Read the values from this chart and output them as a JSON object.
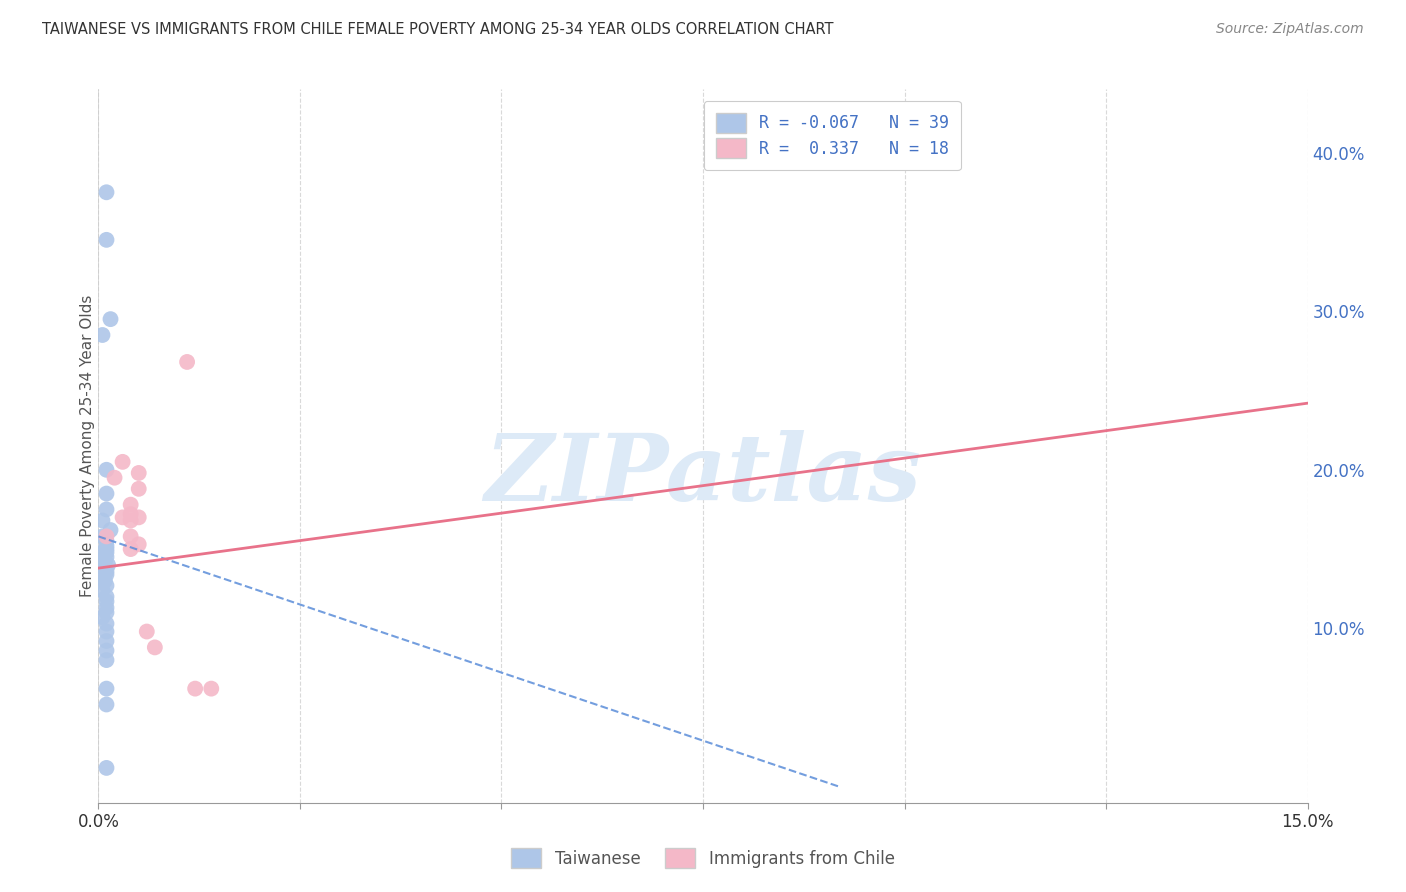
{
  "title": "TAIWANESE VS IMMIGRANTS FROM CHILE FEMALE POVERTY AMONG 25-34 YEAR OLDS CORRELATION CHART",
  "source": "Source: ZipAtlas.com",
  "ylabel": "Female Poverty Among 25-34 Year Olds",
  "xlim": [
    0,
    0.15
  ],
  "ylim": [
    -0.01,
    0.44
  ],
  "xticks": [
    0.0,
    0.025,
    0.05,
    0.075,
    0.1,
    0.125,
    0.15
  ],
  "yticks_right": [
    0.0,
    0.1,
    0.2,
    0.3,
    0.4
  ],
  "ytick_right_labels": [
    "",
    "10.0%",
    "20.0%",
    "30.0%",
    "40.0%"
  ],
  "r_taiwanese": -0.067,
  "n_taiwanese": 39,
  "r_chile": 0.337,
  "n_chile": 18,
  "legend_label1": "Taiwanese",
  "legend_label2": "Immigrants from Chile",
  "blue_color": "#aec6e8",
  "pink_color": "#f4b8c8",
  "blue_line_color": "#5b8dd9",
  "pink_line_color": "#e8728a",
  "blue_scatter": [
    [
      0.001,
      0.375
    ],
    [
      0.001,
      0.345
    ],
    [
      0.0015,
      0.295
    ],
    [
      0.0005,
      0.285
    ],
    [
      0.001,
      0.2
    ],
    [
      0.001,
      0.185
    ],
    [
      0.001,
      0.175
    ],
    [
      0.0005,
      0.168
    ],
    [
      0.0015,
      0.162
    ],
    [
      0.0005,
      0.158
    ],
    [
      0.001,
      0.155
    ],
    [
      0.001,
      0.152
    ],
    [
      0.001,
      0.15
    ],
    [
      0.0005,
      0.148
    ],
    [
      0.001,
      0.148
    ],
    [
      0.001,
      0.145
    ],
    [
      0.0005,
      0.143
    ],
    [
      0.0008,
      0.142
    ],
    [
      0.0012,
      0.14
    ],
    [
      0.0008,
      0.138
    ],
    [
      0.001,
      0.136
    ],
    [
      0.001,
      0.134
    ],
    [
      0.0005,
      0.133
    ],
    [
      0.0008,
      0.13
    ],
    [
      0.001,
      0.127
    ],
    [
      0.0005,
      0.124
    ],
    [
      0.001,
      0.12
    ],
    [
      0.001,
      0.117
    ],
    [
      0.001,
      0.113
    ],
    [
      0.001,
      0.11
    ],
    [
      0.0005,
      0.107
    ],
    [
      0.001,
      0.103
    ],
    [
      0.001,
      0.098
    ],
    [
      0.001,
      0.092
    ],
    [
      0.001,
      0.086
    ],
    [
      0.001,
      0.08
    ],
    [
      0.001,
      0.062
    ],
    [
      0.001,
      0.052
    ],
    [
      0.001,
      0.012
    ]
  ],
  "pink_scatter": [
    [
      0.001,
      0.158
    ],
    [
      0.002,
      0.195
    ],
    [
      0.003,
      0.205
    ],
    [
      0.003,
      0.17
    ],
    [
      0.004,
      0.178
    ],
    [
      0.004,
      0.172
    ],
    [
      0.004,
      0.168
    ],
    [
      0.004,
      0.158
    ],
    [
      0.004,
      0.15
    ],
    [
      0.005,
      0.198
    ],
    [
      0.005,
      0.188
    ],
    [
      0.005,
      0.17
    ],
    [
      0.005,
      0.153
    ],
    [
      0.006,
      0.098
    ],
    [
      0.007,
      0.088
    ],
    [
      0.011,
      0.268
    ],
    [
      0.012,
      0.062
    ],
    [
      0.014,
      0.062
    ]
  ],
  "blue_line": {
    "x0": 0.0,
    "y0": 0.158,
    "x1": 0.092,
    "y1": 0.0
  },
  "pink_line": {
    "x0": 0.0,
    "y0": 0.138,
    "x1": 0.15,
    "y1": 0.242
  },
  "watermark_text": "ZIPatlas",
  "watermark_color": "#ddeaf7",
  "background_color": "#ffffff",
  "grid_color": "#d0d0d0"
}
